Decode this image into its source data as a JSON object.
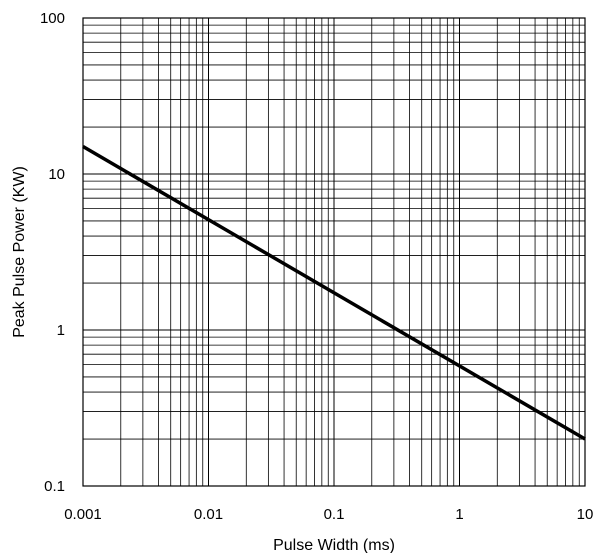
{
  "chart_data": {
    "type": "line",
    "title": "",
    "xlabel": "Pulse Width (ms)",
    "ylabel": "Peak Pulse Power (KW)",
    "xscale": "log",
    "yscale": "log",
    "xlim": [
      0.001,
      10
    ],
    "ylim": [
      0.1,
      100
    ],
    "grid": true,
    "x_ticks": [
      0.001,
      0.01,
      0.1,
      1,
      10
    ],
    "x_tick_labels": [
      "0.001",
      "0.01",
      "0.1",
      "1",
      "10"
    ],
    "y_ticks": [
      0.1,
      1,
      10,
      100
    ],
    "y_tick_labels": [
      "0.1",
      "1",
      "10",
      "100"
    ],
    "series": [
      {
        "x": [
          0.001,
          10
        ],
        "y": [
          15,
          0.2
        ],
        "color": "#000000"
      }
    ]
  }
}
